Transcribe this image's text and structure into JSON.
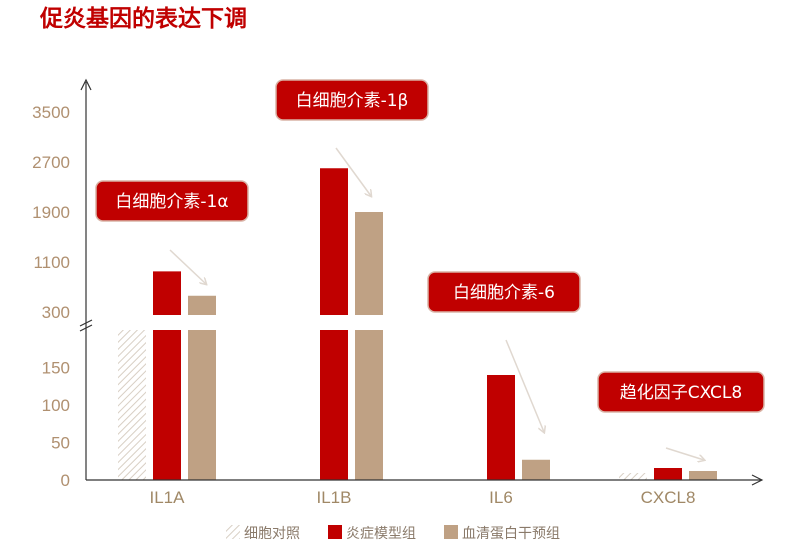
{
  "colors": {
    "title": "#c00000",
    "axis": "#333333",
    "tick_text": "#b09070",
    "cat_text": "#a08866",
    "legend_text": "#8a7a6a",
    "control": "#d8cfc4",
    "model": "#c00000",
    "serum": "#bfa184",
    "callout_fill": "#c00000",
    "callout_stroke": "#d9b3a6",
    "arrow": "#e0d8d0"
  },
  "chart_data": {
    "type": "bar",
    "title": "促炎基因的表达下调",
    "categories": [
      "IL1A",
      "IL1B",
      "IL6",
      "CXCL8"
    ],
    "series": [
      {
        "name": "细胞对照",
        "values": [
          1,
          1,
          1,
          1
        ]
      },
      {
        "name": "炎症模型组",
        "values": [
          950,
          2600,
          140,
          16
        ]
      },
      {
        "name": "血清蛋白干预组",
        "values": [
          560,
          1900,
          27,
          12
        ]
      }
    ],
    "axis_broken": true,
    "y_lower_ticks": [
      0,
      50,
      100,
      150
    ],
    "y_upper_ticks": [
      300,
      1100,
      1900,
      2700,
      3500
    ],
    "ylim_lower": [
      0,
      200
    ],
    "ylim_upper": [
      300,
      3500
    ],
    "legend_position": "bottom",
    "annotations": [
      {
        "category": "IL1A",
        "text": "白细胞介素-1α"
      },
      {
        "category": "IL1B",
        "text": "白细胞介素-1β"
      },
      {
        "category": "IL6",
        "text": "白细胞介素-6"
      },
      {
        "category": "CXCL8",
        "text": "趋化因子CXCL8"
      }
    ]
  }
}
